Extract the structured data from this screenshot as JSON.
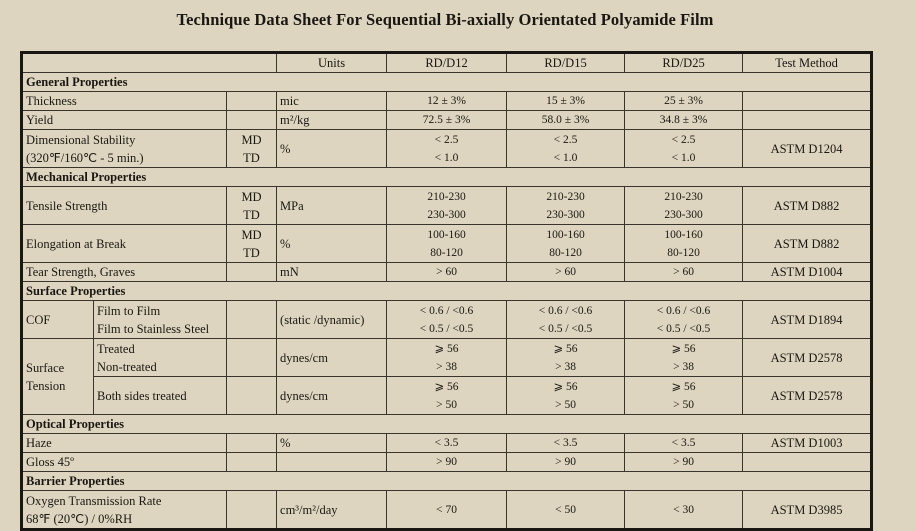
{
  "title": "Technique Data Sheet For Sequential Bi-axially Orientated Polyamide Film",
  "header": {
    "units": "Units",
    "grades": [
      "RD/D12",
      "RD/D15",
      "RD/D25"
    ],
    "test_method": "Test Method"
  },
  "general": {
    "title": "General Properties",
    "thickness": {
      "label": "Thickness",
      "unit": "mic",
      "values": [
        "12 ± 3%",
        "15 ± 3%",
        "25 ± 3%"
      ]
    },
    "yield": {
      "label": "Yield",
      "unit": "m²/kg",
      "values": [
        "72.5 ± 3%",
        "58.0 ± 3%",
        "34.8 ± 3%"
      ]
    },
    "dimensional": {
      "label1": "Dimensional Stability",
      "label2": "(320℉/160℃ - 5 min.)",
      "dir1": "MD",
      "dir2": "TD",
      "unit": "%",
      "values_md": [
        "< 2.5",
        "< 2.5",
        "< 2.5"
      ],
      "values_td": [
        "< 1.0",
        "< 1.0",
        "< 1.0"
      ],
      "method": "ASTM D1204"
    }
  },
  "mechanical": {
    "title": "Mechanical Properties",
    "tensile": {
      "label": "Tensile Strength",
      "dir1": "MD",
      "dir2": "TD",
      "unit": "MPa",
      "values_md": [
        "210-230",
        "210-230",
        "210-230"
      ],
      "values_td": [
        "230-300",
        "230-300",
        "230-300"
      ],
      "method": "ASTM D882"
    },
    "elongation": {
      "label": "Elongation at Break",
      "dir1": "MD",
      "dir2": "TD",
      "unit": "%",
      "values_md": [
        "100-160",
        "100-160",
        "100-160"
      ],
      "values_td": [
        "80-120",
        "80-120",
        "80-120"
      ],
      "method": "ASTM D882"
    },
    "tear": {
      "label": "Tear Strength, Graves",
      "unit": "mN",
      "values": [
        "> 60",
        "> 60",
        "> 60"
      ],
      "method": "ASTM D1004"
    }
  },
  "surface": {
    "title": "Surface Properties",
    "cof": {
      "label": "COF",
      "sub1": "Film to Film",
      "sub2": "Film to Stainless Steel",
      "unit": "(static /dynamic)",
      "values1": [
        "< 0.6 / <0.6",
        "< 0.6 / <0.6",
        "< 0.6 / <0.6"
      ],
      "values2": [
        "< 0.5 / <0.5",
        "< 0.5 / <0.5",
        "< 0.5 / <0.5"
      ],
      "method": "ASTM D1894"
    },
    "tension": {
      "label1": "Surface",
      "label2": "Tension",
      "a": {
        "sub1": "Treated",
        "sub2": "Non-treated",
        "unit": "dynes/cm",
        "values1": [
          "⩾ 56",
          "⩾ 56",
          "⩾ 56"
        ],
        "values2": [
          "> 38",
          "> 38",
          "> 38"
        ],
        "method": "ASTM D2578"
      },
      "b": {
        "sub": "Both sides treated",
        "unit": "dynes/cm",
        "values1": [
          "⩾ 56",
          "⩾ 56",
          "⩾ 56"
        ],
        "values2": [
          "> 50",
          "> 50",
          "> 50"
        ],
        "method": "ASTM D2578"
      }
    }
  },
  "optical": {
    "title": "Optical Properties",
    "haze": {
      "label": "Haze",
      "unit": "%",
      "values": [
        "< 3.5",
        "< 3.5",
        "< 3.5"
      ],
      "method": "ASTM D1003"
    },
    "gloss": {
      "label": "Gloss 45º",
      "values": [
        "> 90",
        "> 90",
        "> 90"
      ]
    }
  },
  "barrier": {
    "title": "Barrier Properties",
    "otr": {
      "label1": "Oxygen Transmission Rate",
      "label2": "68℉ (20℃) / 0%RH",
      "unit": "cm³/m²/day",
      "values": [
        "< 70",
        "< 50",
        "< 30"
      ],
      "method": "ASTM D3985"
    }
  }
}
